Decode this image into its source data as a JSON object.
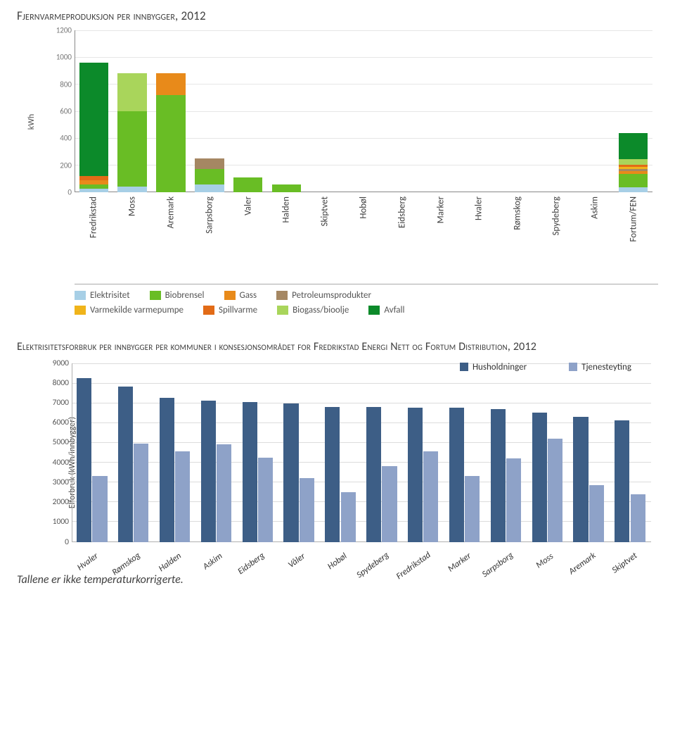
{
  "title": "Fjernvarmeproduksjon per innbygger, 2012",
  "subtitle": "Elektrisitetsforbruk per innbygger per kommuner i konsesjonsområdet for Fredrikstad Energi Nett og Fortum Distribution, 2012",
  "note": "Tallene er ikke temperaturkorrigerte.",
  "chart1": {
    "type": "stacked-bar",
    "ylabel": "kWh",
    "ymax": 1200,
    "ytick_step": 200,
    "background_color": "#ffffff",
    "grid_color": "#e6e6e6",
    "axis_color": "#888888",
    "tick_font_size": 11,
    "label_font_size": 13,
    "categories": [
      "Fredrikstad",
      "Moss",
      "Aremark",
      "Sarpsborg",
      "Valer",
      "Halden",
      "Skiptvet",
      "Hobøl",
      "Eidsberg",
      "Marker",
      "Hvaler",
      "Rømskog",
      "Spydeberg",
      "Askim",
      "Fortum/FEN"
    ],
    "series": [
      {
        "name": "Elektrisitet",
        "color": "#a7cfe6"
      },
      {
        "name": "Biobrensel",
        "color": "#69bd25"
      },
      {
        "name": "Gass",
        "color": "#e88a1a"
      },
      {
        "name": "Petroleumsprodukter",
        "color": "#a58763"
      },
      {
        "name": "Varmekilde varmepumpe",
        "color": "#f0b41a"
      },
      {
        "name": "Spillvarme",
        "color": "#e26b17"
      },
      {
        "name": "Biogass/bioolje",
        "color": "#a9d55b"
      },
      {
        "name": "Avfall",
        "color": "#0c8a2a"
      }
    ],
    "data": [
      {
        "Elektrisitet": 25,
        "Spillvarme": 30,
        "Gass": 35,
        "Biobrensel": 30,
        "Avfall": 840
      },
      {
        "Elektrisitet": 40,
        "Biobrensel": 560,
        "Biogass/bioolje": 280
      },
      {
        "Biobrensel": 720,
        "Gass": 160
      },
      {
        "Elektrisitet": 55,
        "Petroleumsprodukter": 80,
        "Biobrensel": 115
      },
      {
        "Biobrensel": 110
      },
      {
        "Biobrensel": 60
      },
      {},
      {},
      {},
      {},
      {},
      {},
      {},
      {},
      {
        "Elektrisitet": 35,
        "Varmekilde varmepumpe": 15,
        "Gass": 22,
        "Spillvarme": 18,
        "Petroleumsprodukter": 15,
        "Biobrensel": 100,
        "Biogass/bioolje": 40,
        "Avfall": 195
      }
    ],
    "legend_layout": [
      [
        "Elektrisitet",
        "Biobrensel",
        "Gass",
        "Petroleumsprodukter"
      ],
      [
        "Varmekilde varmepumpe",
        "Spillvarme",
        "Biogass/bioolje",
        "Avfall"
      ]
    ]
  },
  "chart2": {
    "type": "grouped-bar",
    "ylabel": "Elforbruk (kWh/innbygger)",
    "ymax": 9000,
    "ytick_step": 1000,
    "background_color": "#ffffff",
    "grid_color": "#dcdcdc",
    "axis_color": "#b0b0b0",
    "tick_font_size": 11.5,
    "label_font_size": 12.5,
    "categories": [
      "Hvaler",
      "Rømskog",
      "Halden",
      "Askim",
      "Eidsberg",
      "Våler",
      "Hobøl",
      "Spydeberg",
      "Fredrikstad",
      "Marker",
      "Sarpsborg",
      "Moss",
      "Aremark",
      "Skiptvet"
    ],
    "series": [
      {
        "name": "Husholdninger",
        "color": "#3d5e86"
      },
      {
        "name": "Tjenesteyting",
        "color": "#8ea2c8"
      }
    ],
    "data": {
      "Husholdninger": [
        8250,
        7800,
        7250,
        7100,
        7050,
        6950,
        6800,
        6800,
        6750,
        6750,
        6700,
        6500,
        6300,
        6100
      ],
      "Tjenesteyting": [
        3300,
        4950,
        4550,
        4900,
        4250,
        3200,
        2500,
        3800,
        4550,
        3300,
        4200,
        5200,
        2850,
        2400
      ]
    }
  }
}
